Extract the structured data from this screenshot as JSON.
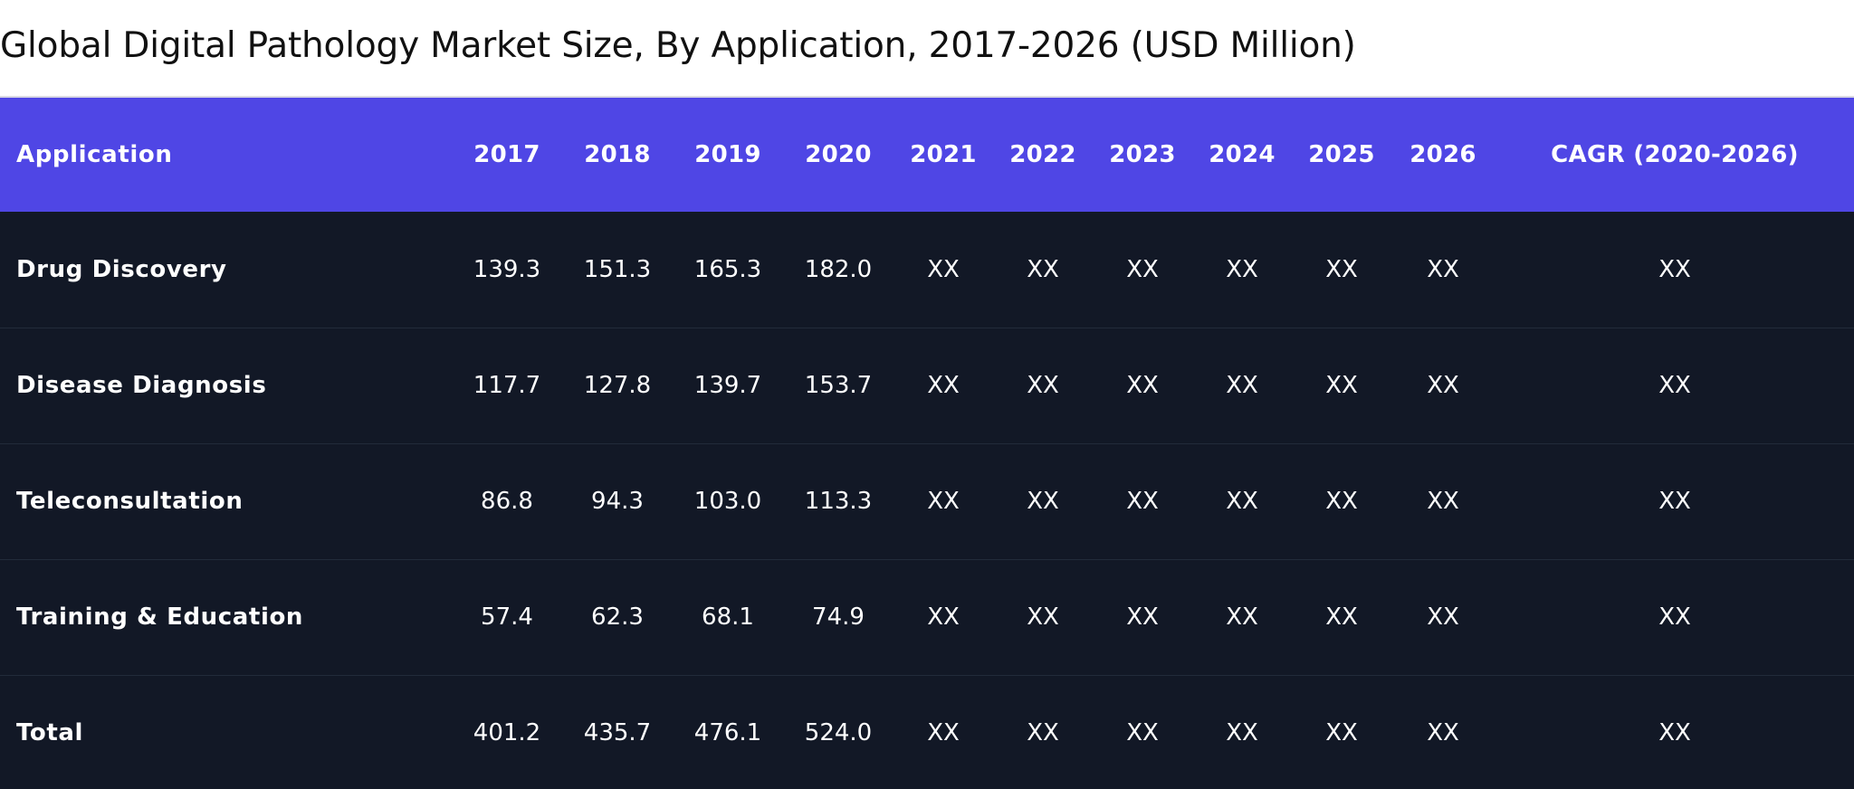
{
  "chart_data": {
    "type": "table",
    "title": "Global Digital Pathology Market Size, By Application, 2017-2026 (USD Million)",
    "columns": [
      "Application",
      "2017",
      "2018",
      "2019",
      "2020",
      "2021",
      "2022",
      "2023",
      "2024",
      "2025",
      "2026",
      "CAGR (2020-2026)"
    ],
    "rows": [
      [
        "Drug Discovery",
        "139.3",
        "151.3",
        "165.3",
        "182.0",
        "XX",
        "XX",
        "XX",
        "XX",
        "XX",
        "XX",
        "XX"
      ],
      [
        "Disease Diagnosis",
        "117.7",
        "127.8",
        "139.7",
        "153.7",
        "XX",
        "XX",
        "XX",
        "XX",
        "XX",
        "XX",
        "XX"
      ],
      [
        "Teleconsultation",
        "86.8",
        "94.3",
        "103.0",
        "113.3",
        "XX",
        "XX",
        "XX",
        "XX",
        "XX",
        "XX",
        "XX"
      ],
      [
        "Training & Education",
        "57.4",
        "62.3",
        "68.1",
        "74.9",
        "XX",
        "XX",
        "XX",
        "XX",
        "XX",
        "XX",
        "XX"
      ],
      [
        "Total",
        "401.2",
        "435.7",
        "476.1",
        "524.0",
        "XX",
        "XX",
        "XX",
        "XX",
        "XX",
        "XX",
        "XX"
      ]
    ]
  },
  "colors": {
    "header_bg": "#4f46e5",
    "body_bg": "#121826",
    "text_light": "#ffffff"
  }
}
